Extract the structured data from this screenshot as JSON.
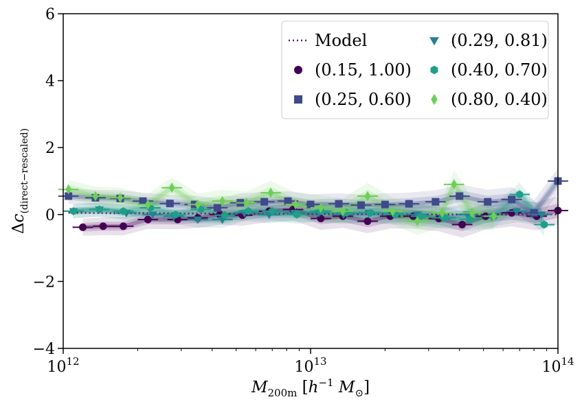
{
  "chart_data": {
    "type": "scatter",
    "title": "",
    "xlabel": "M_200m [h^-1 M_sun]",
    "ylabel": "Δc_(direct−rescaled)",
    "xscale": "log",
    "xlim": [
      1000000000000.0,
      100000000000000.0
    ],
    "ylim": [
      -4,
      6
    ],
    "grid": false,
    "legend_position": "top-right",
    "xtick_labels": [
      {
        "value": 1000000000000.0,
        "base": "10",
        "exp": "12"
      },
      {
        "value": 10000000000000.0,
        "base": "10",
        "exp": "13"
      },
      {
        "value": 100000000000000.0,
        "base": "10",
        "exp": "14"
      }
    ],
    "yticks": [
      -4,
      -2,
      0,
      2,
      4,
      6
    ],
    "ytick_labels": [
      "−4",
      "−2",
      "0",
      "2",
      "4",
      "6"
    ],
    "model": {
      "name": "Model",
      "color": "#5a1a6a",
      "x": [
        1050000000000.0,
        1200000000000.0,
        1500000000000.0,
        2000000000000.0,
        3000000000000.0,
        4000000000000.0,
        6000000000000.0,
        8000000000000.0,
        11000000000000.0,
        15000000000000.0,
        20000000000000.0,
        30000000000000.0,
        40000000000000.0,
        60000000000000.0,
        80000000000000.0,
        100000000000000.0
      ],
      "y": [
        0.05,
        0.05,
        0.04,
        0.04,
        0.03,
        0.03,
        0.02,
        0.02,
        0.01,
        0.01,
        0.01,
        0.0,
        0.0,
        0.0,
        0.0,
        0.0
      ]
    },
    "series": [
      {
        "name": "(0.15, 1.00)",
        "marker": "circle",
        "color": "#440154",
        "x": [
          1200000000000.0,
          1450000000000.0,
          1750000000000.0,
          2200000000000.0,
          2900000000000.0,
          3500000000000.0,
          4300000000000.0,
          5300000000000.0,
          6800000000000.0,
          8500000000000.0,
          11000000000000.0,
          13500000000000.0,
          17000000000000.0,
          21000000000000.0,
          26000000000000.0,
          33000000000000.0,
          41000000000000.0,
          51000000000000.0,
          65000000000000.0,
          82000000000000.0,
          100000000000000.0
        ],
        "y": [
          -0.38,
          -0.35,
          -0.35,
          -0.15,
          -0.15,
          -0.1,
          0.0,
          -0.02,
          0.1,
          0.15,
          -0.12,
          -0.05,
          -0.2,
          -0.05,
          -0.05,
          -0.12,
          -0.3,
          -0.05,
          0.05,
          -0.05,
          0.12
        ]
      },
      {
        "name": "(0.25, 0.60)",
        "marker": "square",
        "color": "#3e4a89",
        "x": [
          1050000000000.0,
          1350000000000.0,
          1700000000000.0,
          2100000000000.0,
          2700000000000.0,
          3400000000000.0,
          4200000000000.0,
          5200000000000.0,
          6500000000000.0,
          8100000000000.0,
          10000000000000.0,
          13000000000000.0,
          16000000000000.0,
          20000000000000.0,
          25000000000000.0,
          32000000000000.0,
          40000000000000.0,
          52000000000000.0,
          65000000000000.0,
          80000000000000.0,
          100000000000000.0
        ],
        "y": [
          0.55,
          0.5,
          0.48,
          0.4,
          0.33,
          0.3,
          0.2,
          0.35,
          0.38,
          0.4,
          0.3,
          0.32,
          0.28,
          0.3,
          0.32,
          0.38,
          0.55,
          0.38,
          0.45,
          0.05,
          1.0
        ]
      },
      {
        "name": "(0.29, 0.81)",
        "marker": "triangle-down",
        "color": "#26828e",
        "x": [
          1100000000000.0,
          1400000000000.0,
          1800000000000.0,
          2300000000000.0,
          2800000000000.0,
          3500000000000.0,
          4400000000000.0,
          5400000000000.0,
          6800000000000.0,
          8600000000000.0,
          10800000000000.0,
          13600000000000.0,
          17200000000000.0,
          21600000000000.0,
          27000000000000.0,
          34000000000000.0,
          43000000000000.0,
          54000000000000.0,
          68000000000000.0,
          86000000000000.0
        ],
        "y": [
          0.1,
          0.15,
          0.05,
          0.0,
          -0.05,
          -0.15,
          -0.15,
          0.05,
          0.0,
          0.05,
          0.05,
          0.0,
          0.05,
          0.02,
          0.0,
          -0.1,
          0.0,
          -0.05,
          0.1,
          0.0
        ]
      },
      {
        "name": "(0.40, 0.70)",
        "marker": "hexagon",
        "color": "#1f9e89",
        "x": [
          1100000000000.0,
          1400000000000.0,
          1750000000000.0,
          2250000000000.0,
          2850000000000.0,
          3600000000000.0,
          4500000000000.0,
          5600000000000.0,
          7000000000000.0,
          8800000000000.0,
          11000000000000.0,
          14000000000000.0,
          17500000000000.0,
          22000000000000.0,
          28000000000000.0,
          35000000000000.0,
          44000000000000.0,
          55000000000000.0,
          70000000000000.0,
          88000000000000.0
        ],
        "y": [
          0.1,
          0.15,
          0.1,
          0.2,
          0.0,
          0.15,
          -0.02,
          0.1,
          0.1,
          0.0,
          0.1,
          0.05,
          0.05,
          0.0,
          -0.05,
          -0.1,
          -0.15,
          -0.05,
          0.6,
          -0.3
        ]
      },
      {
        "name": "(0.80, 0.40)",
        "marker": "diamond",
        "color": "#6ece58",
        "x": [
          1050000000000.0,
          1350000000000.0,
          1700000000000.0,
          2200000000000.0,
          2750000000000.0,
          3500000000000.0,
          4400000000000.0,
          5500000000000.0,
          6900000000000.0,
          8700000000000.0,
          11000000000000.0,
          13500000000000.0,
          17000000000000.0,
          21500000000000.0,
          27000000000000.0,
          34000000000000.0,
          38000000000000.0,
          45000000000000.0,
          55000000000000.0
        ],
        "y": [
          0.75,
          0.55,
          0.5,
          0.3,
          0.8,
          0.3,
          0.4,
          0.35,
          0.65,
          0.3,
          0.2,
          0.1,
          0.55,
          0.1,
          -0.2,
          0.05,
          0.9,
          0.05,
          -0.05
        ]
      }
    ]
  }
}
